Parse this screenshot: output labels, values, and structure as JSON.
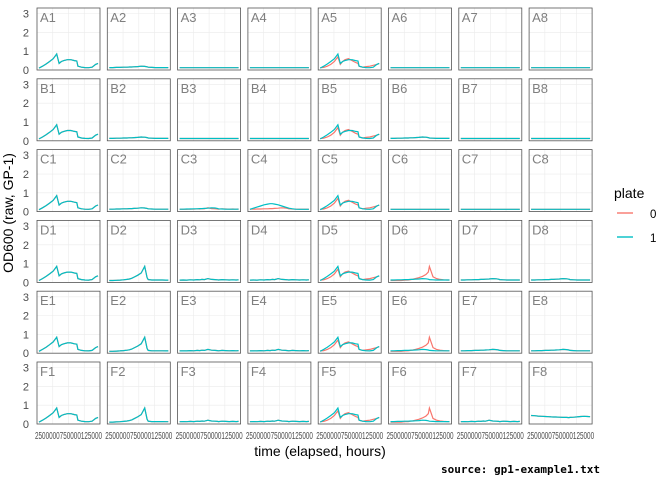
{
  "chart_data": {
    "type": "line",
    "layout": "facet grid, 6 rows x 8 columns (well plate layout)",
    "rows": [
      "A",
      "B",
      "C",
      "D",
      "E",
      "F"
    ],
    "columns": [
      "1",
      "2",
      "3",
      "4",
      "5",
      "6",
      "7",
      "8"
    ],
    "xlabel": "time (elapsed, hours)",
    "ylabel": "OD600 (raw, GP-1)",
    "caption": "source: gp1-example1.txt",
    "yticks": [
      "0",
      "1",
      "2",
      "3"
    ],
    "ylim": [
      0,
      3.3
    ],
    "xlim": [
      0,
      1
    ],
    "xtick_text": "2500000750000125000",
    "legend": {
      "title": "plate",
      "position": "right",
      "entries": [
        {
          "name": "0",
          "color": "#F8766D"
        },
        {
          "name": "1",
          "color": "#00BFC4"
        }
      ]
    },
    "colors": {
      "plate0": "#F8766D",
      "plate1": "#00BFC4",
      "panel_border": "#555555",
      "grid": "#ebebeb"
    },
    "x": [
      0,
      0.06,
      0.12,
      0.18,
      0.24,
      0.3,
      0.34,
      0.38,
      0.42,
      0.48,
      0.54,
      0.6,
      0.64,
      0.66,
      0.72,
      0.78,
      0.84,
      0.9,
      0.96,
      1.0
    ],
    "profiles": {
      "flat": [
        0.12,
        0.12,
        0.12,
        0.12,
        0.12,
        0.12,
        0.12,
        0.12,
        0.12,
        0.12,
        0.12,
        0.12,
        0.12,
        0.12,
        0.12,
        0.12,
        0.12,
        0.12,
        0.12,
        0.12
      ],
      "flat2": [
        0.13,
        0.13,
        0.14,
        0.14,
        0.15,
        0.15,
        0.16,
        0.16,
        0.17,
        0.18,
        0.2,
        0.19,
        0.17,
        0.15,
        0.14,
        0.13,
        0.13,
        0.13,
        0.13,
        0.13
      ],
      "fast": [
        0.1,
        0.2,
        0.32,
        0.45,
        0.6,
        0.85,
        0.35,
        0.45,
        0.5,
        0.55,
        0.55,
        0.5,
        0.48,
        0.2,
        0.15,
        0.13,
        0.12,
        0.15,
        0.3,
        0.35
      ],
      "mid": [
        0.1,
        0.1,
        0.11,
        0.12,
        0.14,
        0.16,
        0.18,
        0.22,
        0.28,
        0.38,
        0.5,
        0.85,
        0.25,
        0.15,
        0.13,
        0.13,
        0.13,
        0.13,
        0.12,
        0.12
      ],
      "late": [
        0.1,
        0.1,
        0.1,
        0.1,
        0.12,
        0.13,
        0.15,
        0.17,
        0.2,
        0.25,
        0.32,
        0.42,
        0.55,
        0.85,
        0.3,
        0.2,
        0.16,
        0.14,
        0.13,
        0.13
      ],
      "bumpy": [
        0.12,
        0.14,
        0.2,
        0.3,
        0.45,
        0.7,
        0.3,
        0.45,
        0.55,
        0.6,
        0.5,
        0.4,
        0.35,
        0.2,
        0.15,
        0.18,
        0.2,
        0.25,
        0.3,
        0.35
      ],
      "wavy": [
        0.12,
        0.13,
        0.12,
        0.14,
        0.13,
        0.15,
        0.14,
        0.16,
        0.15,
        0.2,
        0.16,
        0.15,
        0.14,
        0.13,
        0.15,
        0.14,
        0.13,
        0.14,
        0.13,
        0.14
      ],
      "hump": [
        0.12,
        0.18,
        0.24,
        0.3,
        0.36,
        0.4,
        0.42,
        0.42,
        0.4,
        0.36,
        0.3,
        0.24,
        0.2,
        0.18,
        0.15,
        0.13,
        0.12,
        0.12,
        0.12,
        0.12
      ],
      "high": [
        0.45,
        0.44,
        0.42,
        0.41,
        0.4,
        0.39,
        0.38,
        0.37,
        0.37,
        0.36,
        0.35,
        0.35,
        0.34,
        0.35,
        0.36,
        0.38,
        0.4,
        0.41,
        0.4,
        0.39
      ]
    },
    "panels": {
      "A1": {
        "p0": "fast",
        "p1": "fast"
      },
      "A2": {
        "p0": "flat2",
        "p1": "flat2"
      },
      "A3": {
        "p0": "flat",
        "p1": "flat"
      },
      "A4": {
        "p0": "flat",
        "p1": "flat"
      },
      "A5": {
        "p0": "bumpy",
        "p1": "fast"
      },
      "A6": {
        "p0": "flat",
        "p1": "flat"
      },
      "A7": {
        "p0": "flat",
        "p1": "flat"
      },
      "A8": {
        "p0": "flat",
        "p1": "flat"
      },
      "B1": {
        "p0": "fast",
        "p1": "fast"
      },
      "B2": {
        "p0": "flat2",
        "p1": "flat2"
      },
      "B3": {
        "p0": "flat",
        "p1": "flat"
      },
      "B4": {
        "p0": "flat",
        "p1": "flat"
      },
      "B5": {
        "p0": "bumpy",
        "p1": "fast"
      },
      "B6": {
        "p0": "flat2",
        "p1": "flat2"
      },
      "B7": {
        "p0": "flat",
        "p1": "flat"
      },
      "B8": {
        "p0": "flat",
        "p1": "flat"
      },
      "C1": {
        "p0": "fast",
        "p1": "fast"
      },
      "C2": {
        "p0": "flat2",
        "p1": "flat2"
      },
      "C3": {
        "p0": "wavy",
        "p1": "flat2"
      },
      "C4": {
        "p0": "flat2",
        "p1": "hump"
      },
      "C5": {
        "p0": "bumpy",
        "p1": "fast"
      },
      "C6": {
        "p0": "flat",
        "p1": "flat"
      },
      "C7": {
        "p0": "flat",
        "p1": "flat"
      },
      "C8": {
        "p0": "flat",
        "p1": "flat"
      },
      "D1": {
        "p0": "fast",
        "p1": "fast"
      },
      "D2": {
        "p0": "mid",
        "p1": "mid"
      },
      "D3": {
        "p0": "wavy",
        "p1": "wavy"
      },
      "D4": {
        "p0": "wavy",
        "p1": "wavy"
      },
      "D5": {
        "p0": "bumpy",
        "p1": "fast"
      },
      "D6": {
        "p0": "late",
        "p1": "flat2"
      },
      "D7": {
        "p0": "flat2",
        "p1": "flat2"
      },
      "D8": {
        "p0": "flat2",
        "p1": "flat2"
      },
      "E1": {
        "p0": "fast",
        "p1": "fast"
      },
      "E2": {
        "p0": "mid",
        "p1": "mid"
      },
      "E3": {
        "p0": "wavy",
        "p1": "wavy"
      },
      "E4": {
        "p0": "wavy",
        "p1": "wavy"
      },
      "E5": {
        "p0": "bumpy",
        "p1": "fast"
      },
      "E6": {
        "p0": "late",
        "p1": "flat2"
      },
      "E7": {
        "p0": "flat2",
        "p1": "flat2"
      },
      "E8": {
        "p0": "flat2",
        "p1": "flat2"
      },
      "F1": {
        "p0": "fast",
        "p1": "fast"
      },
      "F2": {
        "p0": "mid",
        "p1": "mid"
      },
      "F3": {
        "p0": "wavy",
        "p1": "wavy"
      },
      "F4": {
        "p0": "wavy",
        "p1": "wavy"
      },
      "F5": {
        "p0": "bumpy",
        "p1": "fast"
      },
      "F6": {
        "p0": "late",
        "p1": "flat2"
      },
      "F7": {
        "p0": "wavy",
        "p1": "wavy"
      },
      "F8": {
        "p0": "high",
        "p1": "high"
      }
    }
  }
}
